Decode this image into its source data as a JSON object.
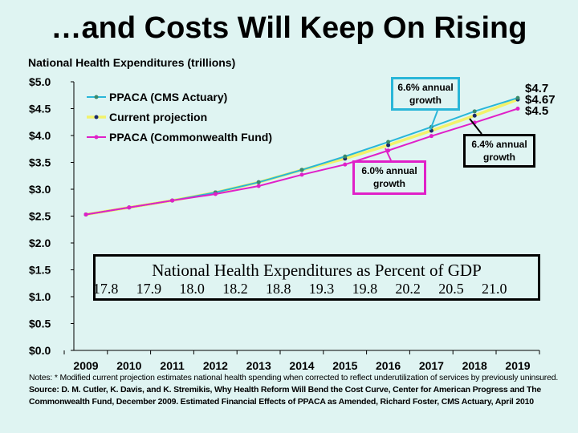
{
  "title": "…and Costs Will Keep On Rising",
  "chart_data": {
    "type": "line",
    "title": "National Health Expenditures (trillions)",
    "x": [
      2009,
      2010,
      2011,
      2012,
      2013,
      2014,
      2015,
      2016,
      2017,
      2018,
      2019
    ],
    "xtick_labels": [
      "2009",
      "2010",
      "2011",
      "2012",
      "2013",
      "2014",
      "2015",
      "2016",
      "2017",
      "2018",
      "2019"
    ],
    "ytick_labels": [
      "$0.0",
      "$0.5",
      "$1.0",
      "$1.5",
      "$2.0",
      "$2.5",
      "$3.0",
      "$3.5",
      "$4.0",
      "$4.5",
      "$5.0"
    ],
    "ylim": [
      0,
      5.0
    ],
    "grid": false,
    "legend_position": "top-left",
    "series": [
      {
        "name": "PPACA (CMS Actuary)",
        "color": "#29b6d8",
        "marker_color": "#3a8a6a",
        "values": [
          2.53,
          2.66,
          2.79,
          2.94,
          3.13,
          3.36,
          3.61,
          3.88,
          4.16,
          4.45,
          4.7
        ]
      },
      {
        "name": "Current projection",
        "color": "#f2f26a",
        "marker_color": "#1a2a6a",
        "values": [
          2.53,
          2.66,
          2.79,
          2.94,
          3.13,
          3.36,
          3.57,
          3.82,
          4.09,
          4.37,
          4.67
        ]
      },
      {
        "name": "PPACA (Commonwealth Fund)",
        "color": "#e020c8",
        "marker_color": "#e020c8",
        "values": [
          2.53,
          2.66,
          2.79,
          2.91,
          3.06,
          3.27,
          3.46,
          3.72,
          3.99,
          4.24,
          4.5
        ]
      }
    ],
    "end_labels": [
      "$4.7",
      "$4.67",
      "$4.5"
    ],
    "annotations": [
      {
        "text": "6.6% annual growth",
        "color": "#29b6d8"
      },
      {
        "text": "6.4% annual growth",
        "color": "#000000"
      },
      {
        "text": "6.0% annual growth",
        "color": "#e020c8"
      }
    ]
  },
  "gdp_table": {
    "title": "National Health Expenditures as Percent of GDP",
    "values": [
      "17.8",
      "17.9",
      "18.0",
      "18.2",
      "18.8",
      "19.3",
      "19.8",
      "20.2",
      "20.5",
      "21.0"
    ]
  },
  "notes": {
    "note": "Notes: * Modified current projection estimates national health spending when corrected to reflect underutilization of services by previously uninsured.",
    "source": "Source: D. M. Cutler, K. Davis, and K. Stremikis, Why Health Reform Will Bend the Cost Curve, Center for American Progress and The Commonwealth Fund, December 2009.  Estimated Financial Effects of PPACA as Amended, Richard Foster, CMS Actuary, April 2010"
  }
}
